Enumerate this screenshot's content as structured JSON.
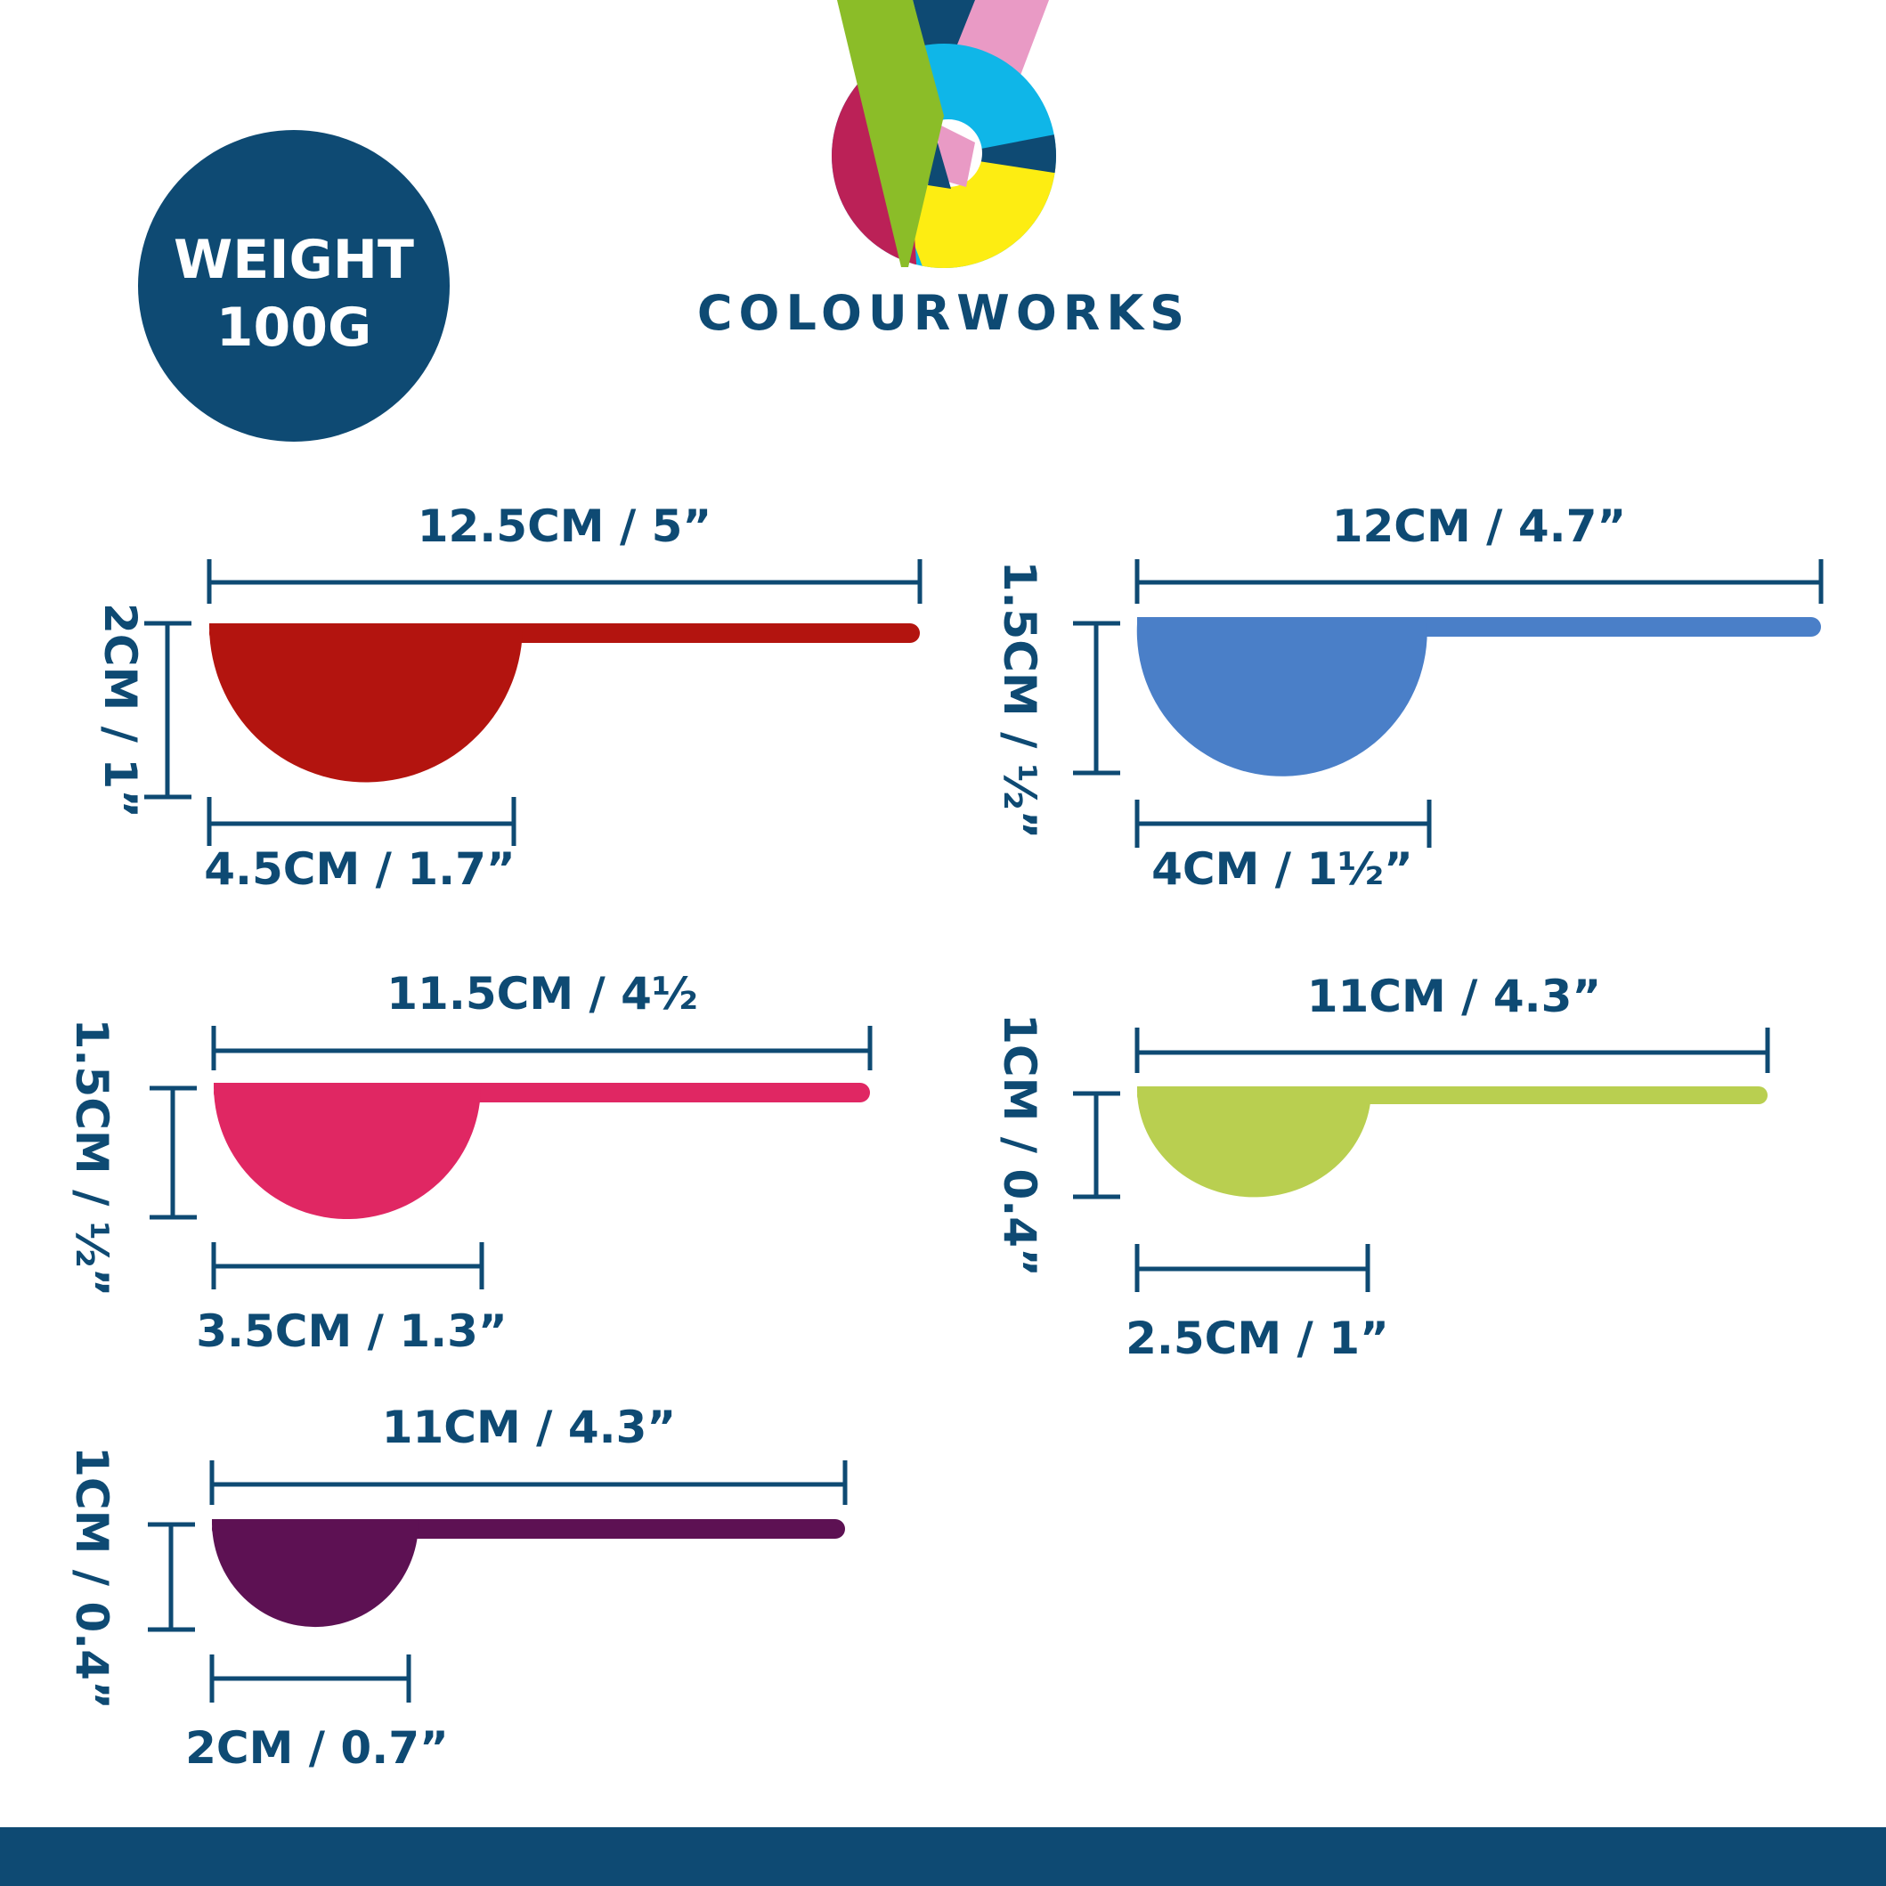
{
  "badge": {
    "line1": "WEIGHT",
    "line2": "100G",
    "color": "#0e4a73"
  },
  "logo": {
    "wordmark": "COLOURWORKS",
    "colors": {
      "green": "#8bbd28",
      "navy": "#0e4a73",
      "pink": "#e99ac5",
      "cyan": "#0fb6e8",
      "crimson": "#bb2157",
      "yellow": "#fded12"
    }
  },
  "text_color": "#0e4a73",
  "spoons": [
    {
      "length_label": "12.5CM / 5”",
      "height_label": "2CM / 1”",
      "bowl_label": "4.5CM / 1.7”",
      "color": "#b3140f"
    },
    {
      "length_label": "12CM / 4.7”",
      "height_label": "1.5CM / ½”",
      "bowl_label": "4CM / 1½”",
      "color": "#4a7fc8"
    },
    {
      "length_label": "11.5CM / 4½",
      "height_label": "1.5CM / ½”",
      "bowl_label": "3.5CM / 1.3”",
      "color": "#e02763"
    },
    {
      "length_label": "11CM / 4.3”",
      "height_label": "1CM / 0.4”",
      "bowl_label": "2.5CM / 1”",
      "color": "#b9cf50"
    },
    {
      "length_label": "11CM / 4.3”",
      "height_label": "1CM / 0.4”",
      "bowl_label": "2CM / 0.7”",
      "color": "#5d1153"
    }
  ],
  "footer": {
    "color": "#0e4a73"
  }
}
